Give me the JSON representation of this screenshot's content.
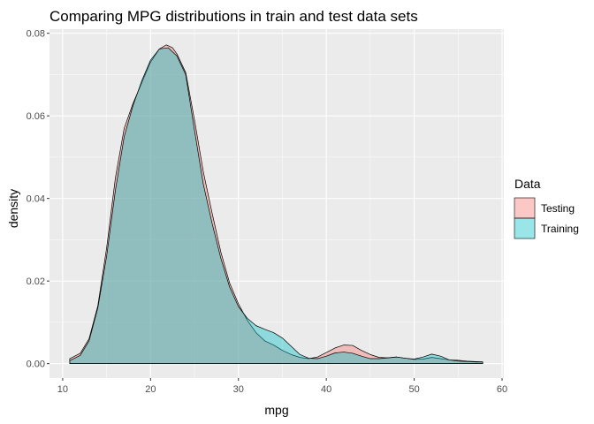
{
  "chart_data": {
    "type": "area",
    "title": "Comparing MPG distributions in train and test data sets",
    "xlabel": "mpg",
    "ylabel": "density",
    "xlim": [
      8.5,
      60.2
    ],
    "ylim": [
      -0.0035,
      0.081
    ],
    "xticks": [
      10,
      20,
      30,
      40,
      50,
      60
    ],
    "yticks": [
      0.0,
      0.02,
      0.04,
      0.06,
      0.08
    ],
    "xtick_labels": [
      "10",
      "20",
      "30",
      "40",
      "50",
      "60"
    ],
    "ytick_labels": [
      "0.00",
      "0.02",
      "0.04",
      "0.06",
      "0.08"
    ],
    "grid": true,
    "legend_position": "right",
    "legend": {
      "title": "Data",
      "entries": [
        "Testing",
        "Training"
      ]
    },
    "series": [
      {
        "name": "Testing",
        "color": "#F8766D",
        "x": [
          10.8,
          12,
          13,
          14,
          15,
          16,
          17,
          18,
          19,
          20,
          21,
          21.8,
          22.5,
          23,
          24,
          25,
          26,
          27,
          28,
          29,
          30,
          31,
          32,
          33,
          34,
          35,
          36,
          37,
          38,
          39,
          40,
          41,
          42,
          43,
          44,
          45,
          46,
          47,
          48,
          49,
          50,
          51,
          52,
          53,
          54,
          55,
          56,
          57,
          57.8
        ],
        "y": [
          0.0012,
          0.0025,
          0.006,
          0.014,
          0.028,
          0.045,
          0.057,
          0.063,
          0.068,
          0.073,
          0.0762,
          0.0772,
          0.0765,
          0.075,
          0.0705,
          0.059,
          0.0465,
          0.0365,
          0.027,
          0.0195,
          0.0145,
          0.0105,
          0.0075,
          0.0055,
          0.0045,
          0.0032,
          0.0022,
          0.0015,
          0.0012,
          0.0016,
          0.0027,
          0.0038,
          0.0045,
          0.0044,
          0.0032,
          0.0022,
          0.0015,
          0.0014,
          0.0016,
          0.0013,
          0.001,
          0.0011,
          0.0015,
          0.0012,
          0.0009,
          0.0008,
          0.0006,
          0.0005,
          0.0004
        ]
      },
      {
        "name": "Training",
        "color": "#00BFC4",
        "x": [
          10.8,
          12,
          13,
          14,
          15,
          16,
          17,
          18,
          19,
          20,
          21,
          22,
          23,
          24,
          25,
          26,
          27,
          28,
          29,
          30,
          31,
          32,
          33,
          34,
          35,
          36,
          37,
          38,
          39,
          40,
          41,
          42,
          43,
          44,
          45,
          46,
          47,
          48,
          49,
          50,
          51,
          52,
          53,
          54,
          55,
          56,
          57,
          57.8
        ],
        "y": [
          0.0007,
          0.002,
          0.0055,
          0.0135,
          0.026,
          0.042,
          0.055,
          0.0625,
          0.0685,
          0.0735,
          0.0762,
          0.0765,
          0.0745,
          0.07,
          0.0565,
          0.0435,
          0.034,
          0.0255,
          0.0185,
          0.0138,
          0.011,
          0.0092,
          0.0083,
          0.0075,
          0.0062,
          0.0042,
          0.0022,
          0.0013,
          0.0012,
          0.0018,
          0.0026,
          0.0028,
          0.0025,
          0.0018,
          0.0012,
          0.0012,
          0.0014,
          0.0016,
          0.0013,
          0.0011,
          0.0016,
          0.0023,
          0.0018,
          0.0009,
          0.0006,
          0.0005,
          0.0004,
          0.0004
        ]
      }
    ]
  }
}
